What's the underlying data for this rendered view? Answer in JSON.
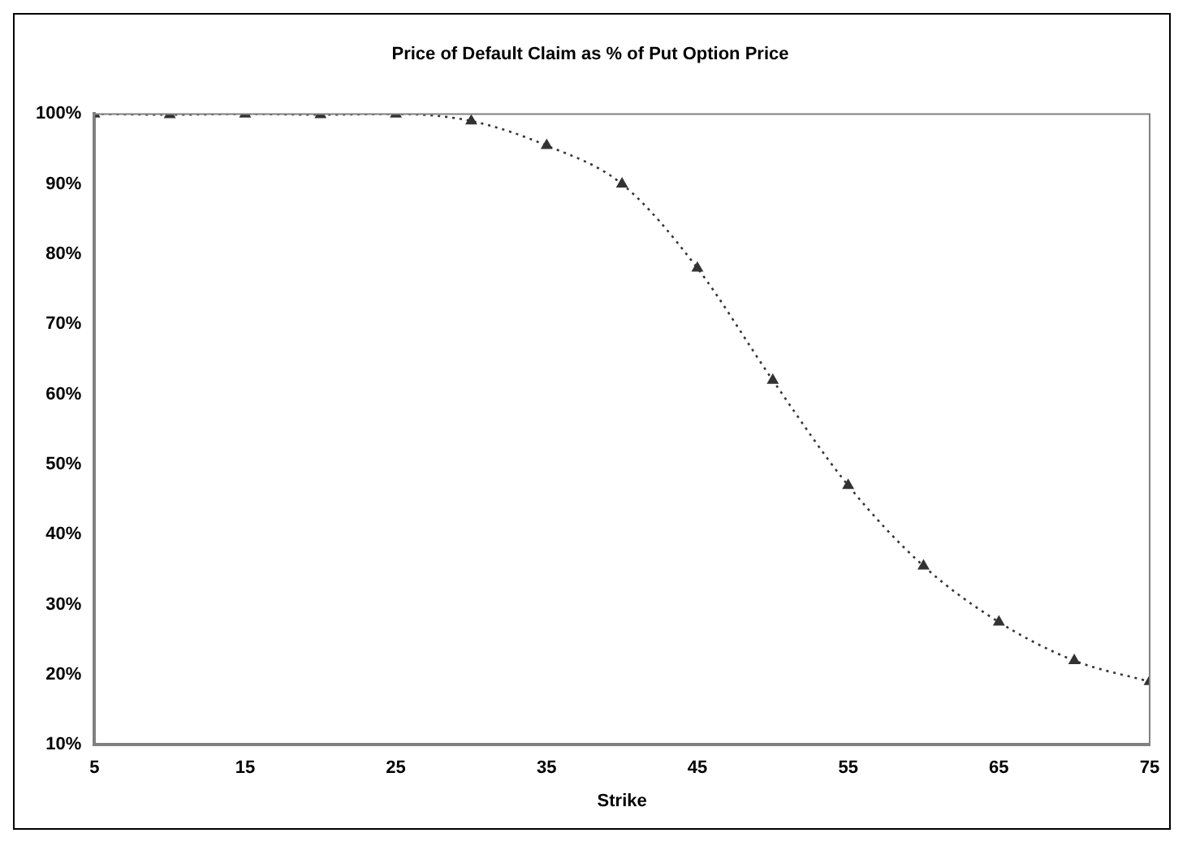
{
  "chart_data": {
    "type": "line",
    "title": "Price of Default Claim as % of Put Option Price",
    "xlabel": "Strike",
    "x": [
      5,
      10,
      15,
      20,
      25,
      30,
      35,
      40,
      45,
      50,
      55,
      60,
      65,
      70,
      75
    ],
    "series": [
      {
        "color": "#333333",
        "values": [
          100,
          99.9,
          100,
          99.9,
          100,
          99,
          95.5,
          90,
          78,
          62,
          47,
          35.5,
          27.5,
          22,
          19
        ]
      }
    ],
    "xlim": [
      5,
      75
    ],
    "xticks": [
      5,
      15,
      25,
      35,
      45,
      55,
      65,
      75
    ],
    "ylim": [
      10,
      100
    ],
    "yticks": [
      {
        "value": 10,
        "label": "10%"
      },
      {
        "value": 20,
        "label": "20%"
      },
      {
        "value": 30,
        "label": "30%"
      },
      {
        "value": 40,
        "label": "40%"
      },
      {
        "value": 50,
        "label": "50%"
      },
      {
        "value": 60,
        "label": "60%"
      },
      {
        "value": 70,
        "label": "70%"
      },
      {
        "value": 80,
        "label": "80%"
      },
      {
        "value": 90,
        "label": "90%"
      },
      {
        "value": 100,
        "label": "100%"
      }
    ],
    "grid": false,
    "legend": false,
    "marker": "triangle",
    "line_style": "dotted"
  }
}
